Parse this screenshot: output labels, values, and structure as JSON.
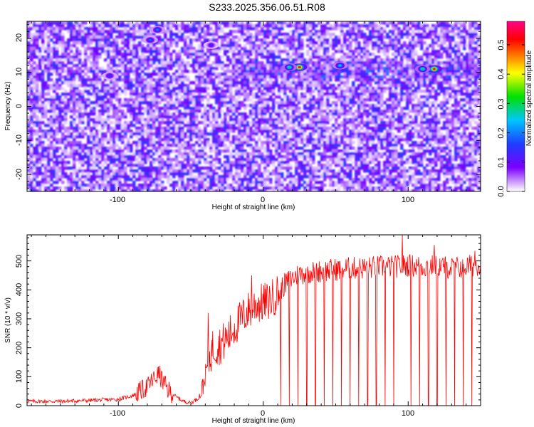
{
  "title": "S233.2025.356.06.51.R08",
  "chart_data": [
    {
      "type": "heatmap",
      "xlabel": "Height of straight line (km)",
      "ylabel": "Frequency (Hz)",
      "xlim": [
        -163,
        150
      ],
      "ylim": [
        -25,
        25
      ],
      "x_ticks": [
        -100,
        0,
        100
      ],
      "x_tick_labels": [
        "-100",
        "0",
        "100"
      ],
      "y_ticks": [
        -20,
        -10,
        0,
        10,
        20
      ],
      "y_tick_labels": [
        "-20",
        "-10",
        "0",
        "10",
        "20"
      ],
      "grid": false,
      "colorbar": {
        "label": "Normalized spectral amplitude",
        "range": [
          0.0,
          0.58
        ],
        "ticks": [
          0.0,
          0.1,
          0.2,
          0.3,
          0.4,
          0.5
        ],
        "tick_labels": [
          "0.0",
          "0.1",
          "0.2",
          "0.3",
          "0.4",
          "0.5"
        ],
        "colormap": [
          "#ffffff",
          "#7b00ff",
          "#1f3dff",
          "#00c6ff",
          "#00e000",
          "#ffff00",
          "#ff8000",
          "#ff0000",
          "#ff0080"
        ]
      },
      "hot_spots": [
        {
          "x": 25,
          "y": 11.5,
          "value": 0.58
        },
        {
          "x": 118,
          "y": 11,
          "value": 0.55
        },
        {
          "x": 18,
          "y": 11.5,
          "value": 0.3
        },
        {
          "x": 110,
          "y": 11,
          "value": 0.3
        },
        {
          "x": 53,
          "y": 12,
          "value": 0.25
        },
        {
          "x": -73,
          "y": 22.5,
          "value": 0.2
        },
        {
          "x": -78,
          "y": 19.5,
          "value": 0.18
        },
        {
          "x": -106,
          "y": 9,
          "value": 0.15
        },
        {
          "x": -36,
          "y": 18,
          "value": 0.12
        }
      ]
    },
    {
      "type": "line",
      "xlabel": "Height of straight line (km)",
      "ylabel": "SNR (10 * v/v)",
      "xlim": [
        -163,
        150
      ],
      "ylim": [
        0,
        590
      ],
      "x_ticks": [
        -100,
        0,
        100
      ],
      "x_tick_labels": [
        "-100",
        "0",
        "100"
      ],
      "y_ticks": [
        0,
        100,
        200,
        300,
        400,
        500
      ],
      "y_tick_labels": [
        "0",
        "100",
        "200",
        "300",
        "400",
        "500"
      ],
      "grid": false,
      "color": "#ff0000",
      "series": [
        {
          "x": [
            -163,
            -140,
            -120,
            -100,
            -90,
            -80,
            -75,
            -72,
            -70,
            -66,
            -60,
            -55,
            -50,
            -45,
            -42,
            -38,
            -35,
            -30,
            -25,
            -20,
            -15,
            -10,
            -5,
            0,
            5,
            10,
            15,
            20,
            25,
            30,
            40,
            50,
            60,
            70,
            80,
            90,
            100,
            110,
            120,
            130,
            140,
            150
          ],
          "y": [
            15,
            15,
            18,
            22,
            35,
            65,
            95,
            110,
            90,
            55,
            30,
            15,
            10,
            25,
            60,
            150,
            200,
            210,
            230,
            270,
            300,
            330,
            350,
            355,
            365,
            390,
            420,
            440,
            455,
            460,
            465,
            470,
            475,
            475,
            480,
            480,
            485,
            480,
            485,
            475,
            480,
            490
          ]
        }
      ],
      "spikes": {
        "up": [
          {
            "x": -38,
            "y": 320
          },
          {
            "x": -8,
            "y": 450
          },
          {
            "x": 3,
            "y": 410
          },
          {
            "x": 96,
            "y": 590
          },
          {
            "x": 118,
            "y": 555
          },
          {
            "x": 146,
            "y": 535
          }
        ],
        "down_x": [
          12,
          18,
          24,
          30,
          36,
          42,
          48,
          54,
          60,
          66,
          72,
          78,
          84,
          90,
          96,
          102,
          108,
          114,
          120,
          126,
          132,
          138,
          144
        ]
      }
    }
  ]
}
